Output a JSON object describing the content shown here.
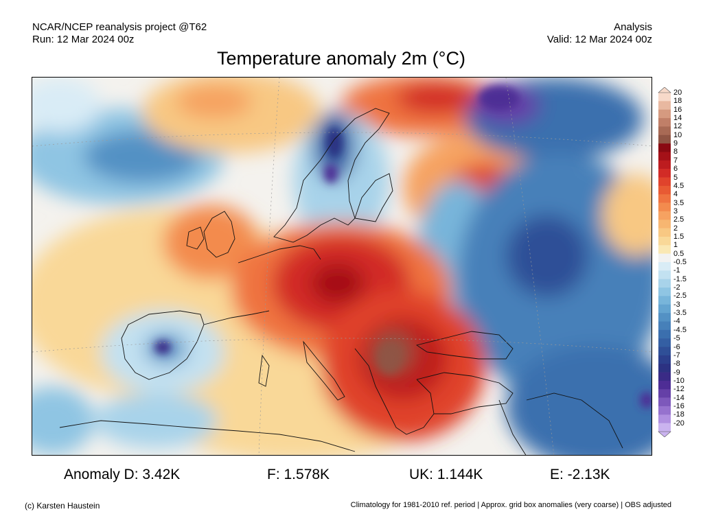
{
  "header": {
    "source": "NCAR/NCEP reanalysis project @T62",
    "run": "Run: 12 Mar 2024 00z",
    "kind": "Analysis",
    "valid": "Valid: 12 Mar 2024 00z"
  },
  "title": "Temperature anomaly 2m (°C)",
  "colorbar": {
    "labels": [
      "20",
      "18",
      "16",
      "14",
      "12",
      "10",
      "9",
      "8",
      "7",
      "6",
      "5",
      "4.5",
      "4",
      "3.5",
      "3",
      "2.5",
      "2",
      "1.5",
      "1",
      "0.5",
      "-0.5",
      "-1",
      "-1.5",
      "-2",
      "-2.5",
      "-3",
      "-3.5",
      "-4",
      "-4.5",
      "-5",
      "-6",
      "-7",
      "-8",
      "-9",
      "-10",
      "-12",
      "-14",
      "-16",
      "-18",
      "-20"
    ],
    "colors": [
      "#f7d9c9",
      "#e8b8a0",
      "#d59a80",
      "#c07f68",
      "#a86a55",
      "#8f5544",
      "#8a0a12",
      "#a51118",
      "#bd1c1f",
      "#d22b26",
      "#e0432c",
      "#e85a33",
      "#ef7340",
      "#f38b4e",
      "#f6a261",
      "#f7b671",
      "#f8c883",
      "#f9d898",
      "#fae8b4",
      "#f2f2f2",
      "#d9ecf6",
      "#c2e1f1",
      "#a8d3ea",
      "#8fc5e3",
      "#78b5da",
      "#64a4d0",
      "#5391c4",
      "#4680b9",
      "#3b6fae",
      "#345fa3",
      "#2f4f97",
      "#2c3f8c",
      "#2c3282",
      "#3a2b86",
      "#4e2d95",
      "#6540a7",
      "#7d58bb",
      "#9672ce",
      "#b090e0",
      "#cab3ef"
    ]
  },
  "map_regions": [
    {
      "name": "greenland-sea-cold",
      "value": -3
    },
    {
      "name": "scandinavia-cold",
      "value": -8
    },
    {
      "name": "western-russia-warm",
      "value": 5
    },
    {
      "name": "arctic-russia-cold",
      "value": -10
    },
    {
      "name": "central-europe-warm",
      "value": 8
    },
    {
      "name": "balkans-warm",
      "value": 10
    },
    {
      "name": "eastern-europe-cold",
      "value": -6
    },
    {
      "name": "iberia-cold",
      "value": -8
    },
    {
      "name": "british-isles-warm",
      "value": 3
    }
  ],
  "stats": {
    "germany": "Anomaly D: 3.42K",
    "france": "F: 1.578K",
    "uk": "UK: 1.144K",
    "spain": "E: -2.13K"
  },
  "footer": {
    "credit": "(c) Karsten Haustein",
    "note": "Climatology for 1981-2010 ref. period | Approx. grid box anomalies (very coarse) | OBS adjusted"
  }
}
